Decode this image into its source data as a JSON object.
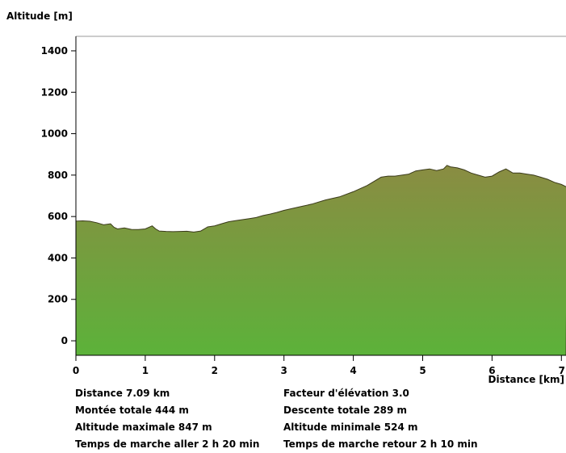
{
  "chart_data": {
    "type": "area",
    "title": "",
    "ylabel": "Altitude [m]",
    "xlabel": "Distance [km]",
    "xlim": [
      0,
      7.09
    ],
    "ylim": [
      -70,
      1470
    ],
    "x_ticks": [
      0,
      1,
      2,
      3,
      4,
      5,
      6,
      7
    ],
    "y_ticks": [
      0,
      200,
      400,
      600,
      800,
      1000,
      1200,
      1400
    ],
    "grid": false,
    "fill_gradient": [
      "#8a8c42",
      "#5cb23a"
    ],
    "x": [
      0,
      0.1,
      0.2,
      0.3,
      0.4,
      0.5,
      0.55,
      0.6,
      0.7,
      0.8,
      0.9,
      1.0,
      1.1,
      1.15,
      1.2,
      1.3,
      1.4,
      1.5,
      1.6,
      1.7,
      1.8,
      1.9,
      2.0,
      2.1,
      2.2,
      2.3,
      2.4,
      2.5,
      2.6,
      2.7,
      2.8,
      2.9,
      3.0,
      3.2,
      3.4,
      3.6,
      3.8,
      4.0,
      4.2,
      4.4,
      4.5,
      4.6,
      4.8,
      4.9,
      5.0,
      5.1,
      5.2,
      5.3,
      5.35,
      5.4,
      5.5,
      5.6,
      5.7,
      5.8,
      5.9,
      6.0,
      6.1,
      6.2,
      6.25,
      6.3,
      6.4,
      6.5,
      6.6,
      6.7,
      6.8,
      6.9,
      7.0,
      7.09
    ],
    "y": [
      578,
      579,
      577,
      570,
      560,
      565,
      548,
      540,
      545,
      538,
      537,
      540,
      555,
      540,
      530,
      528,
      527,
      528,
      529,
      525,
      530,
      550,
      555,
      565,
      575,
      580,
      585,
      590,
      595,
      605,
      612,
      620,
      630,
      645,
      660,
      680,
      695,
      720,
      750,
      790,
      795,
      795,
      805,
      820,
      825,
      830,
      822,
      830,
      847,
      840,
      835,
      825,
      810,
      800,
      790,
      795,
      815,
      830,
      820,
      810,
      810,
      805,
      800,
      790,
      780,
      765,
      755,
      740
    ]
  },
  "stats": {
    "distance": "Distance 7.09 km",
    "ascent": "Montée totale  444 m",
    "max_alt": "Altitude maximale  847 m",
    "time_out": "Temps de marche aller  2 h 20 min",
    "elev_factor": "Facteur d'élévation 3.0",
    "descent": "Descente totale  289 m",
    "min_alt": "Altitude minimale  524 m",
    "time_back": "Temps de marche retour  2 h 10 min"
  }
}
